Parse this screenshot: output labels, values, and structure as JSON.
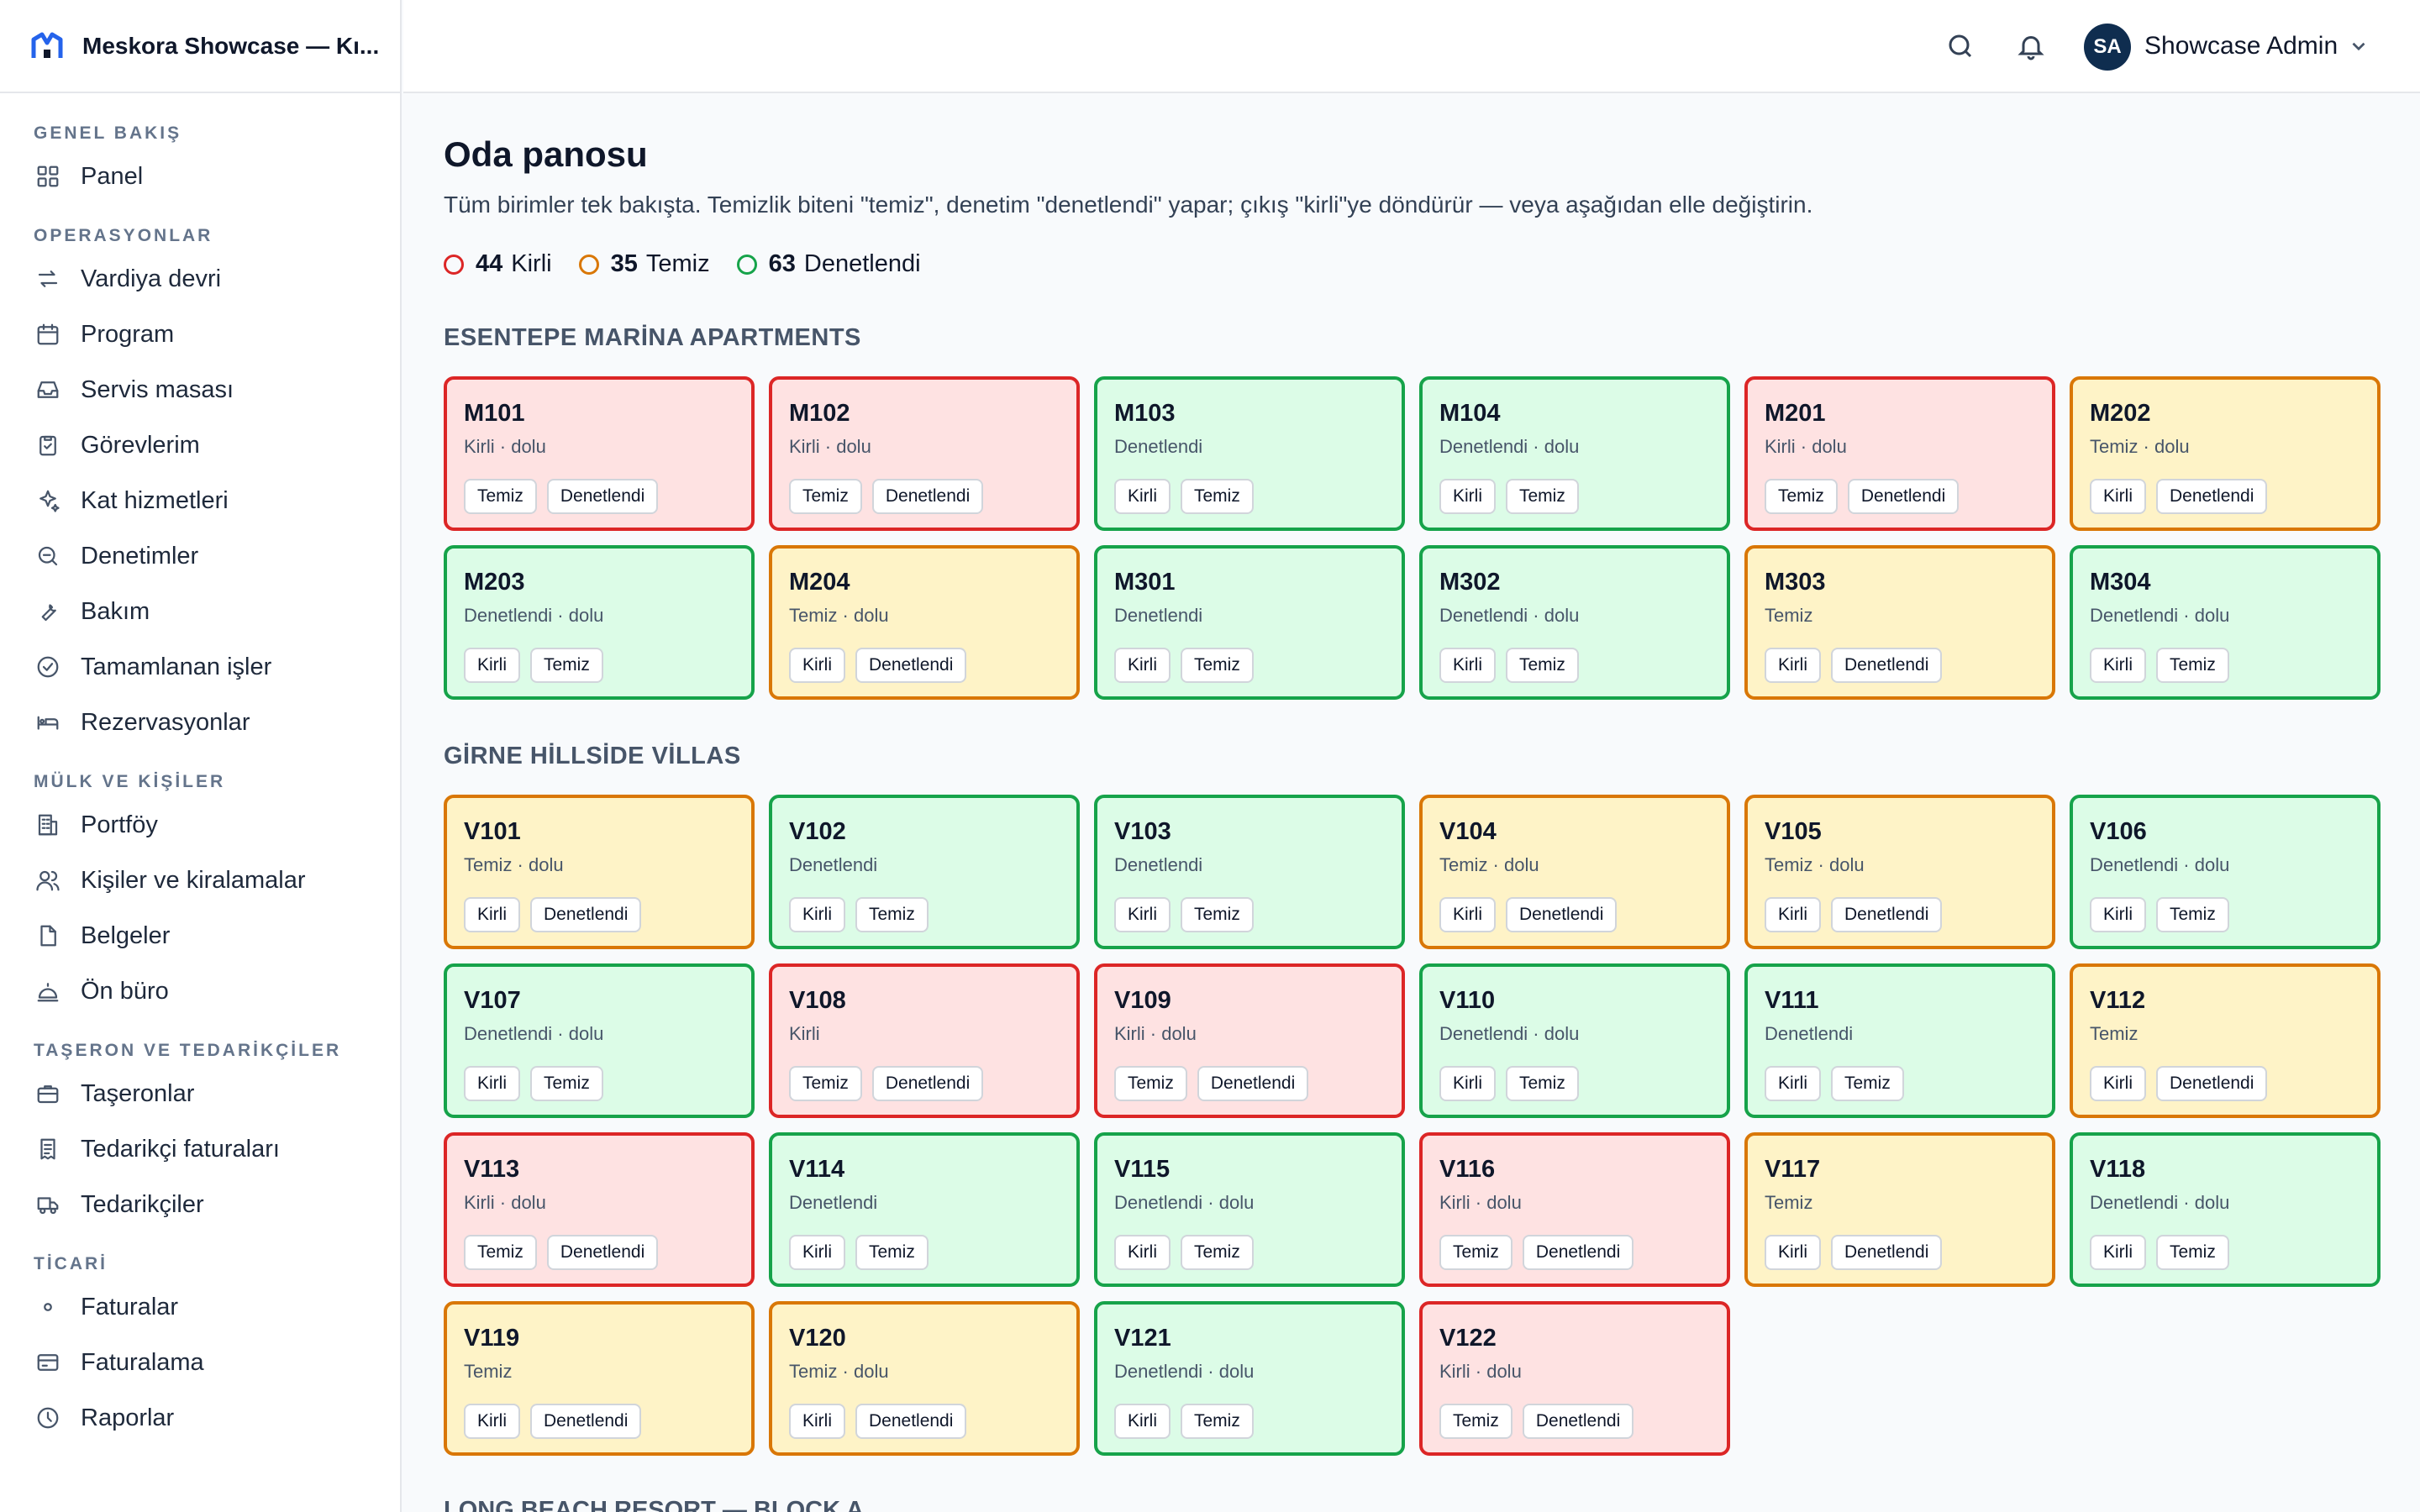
{
  "app": {
    "title": "Meskora Showcase — Kı..."
  },
  "colors": {
    "dirty": "#dc2626",
    "clean": "#d97706",
    "inspected": "#16a34a",
    "avatar": "#0f2d4f",
    "brand": "#2563eb"
  },
  "nav": {
    "sections": [
      {
        "label": "GENEL BAKIŞ",
        "items": [
          {
            "label": "Panel",
            "icon": "grid-icon"
          }
        ]
      },
      {
        "label": "OPERASYONLAR",
        "items": [
          {
            "label": "Vardiya devri",
            "icon": "swap-icon"
          },
          {
            "label": "Program",
            "icon": "calendar-icon"
          },
          {
            "label": "Servis masası",
            "icon": "inbox-icon"
          },
          {
            "label": "Görevlerim",
            "icon": "clipboard-check-icon"
          },
          {
            "label": "Kat hizmetleri",
            "icon": "sparkles-icon"
          },
          {
            "label": "Denetimler",
            "icon": "search-zoom-icon"
          },
          {
            "label": "Bakım",
            "icon": "wrench-icon"
          },
          {
            "label": "Tamamlanan işler",
            "icon": "check-circle-icon"
          },
          {
            "label": "Rezervasyonlar",
            "icon": "bed-icon"
          }
        ]
      },
      {
        "label": "MÜLK VE KİŞİLER",
        "items": [
          {
            "label": "Portföy",
            "icon": "building-icon"
          },
          {
            "label": "Kişiler ve kiralamalar",
            "icon": "users-icon"
          },
          {
            "label": "Belgeler",
            "icon": "file-icon"
          },
          {
            "label": "Ön büro",
            "icon": "bell-desk-icon"
          }
        ]
      },
      {
        "label": "TAŞERON VE TEDARİKÇİLER",
        "items": [
          {
            "label": "Taşeronlar",
            "icon": "briefcase-icon"
          },
          {
            "label": "Tedarikçi faturaları",
            "icon": "receipt-icon"
          },
          {
            "label": "Tedarikçiler",
            "icon": "truck-icon"
          }
        ]
      },
      {
        "label": "TİCARİ",
        "items": [
          {
            "label": "Faturalar",
            "icon": "dot-icon"
          },
          {
            "label": "Faturalama",
            "icon": "card-icon"
          },
          {
            "label": "Raporlar",
            "icon": "clock-icon"
          }
        ]
      }
    ]
  },
  "topbar": {
    "avatar_initials": "SA",
    "user_name": "Showcase Admin"
  },
  "page": {
    "title": "Oda panosu",
    "description": "Tüm birimler tek bakışta. Temizlik biteni \"temiz\", denetim \"denetlendi\" yapar; çıkış \"kirli\"ye döndürür — veya aşağıdan elle değiştirin.",
    "summary": [
      {
        "count": "44",
        "label": "Kirli",
        "state": "dirty"
      },
      {
        "count": "35",
        "label": "Temiz",
        "state": "clean"
      },
      {
        "count": "63",
        "label": "Denetlendi",
        "state": "inspected"
      }
    ]
  },
  "properties": [
    {
      "name": "ESENTEPE MARİNA APARTMENTS",
      "rooms": [
        {
          "id": "M101",
          "status": "Kirli · dolu",
          "state": "dirty",
          "actions": [
            "Temiz",
            "Denetlendi"
          ]
        },
        {
          "id": "M102",
          "status": "Kirli · dolu",
          "state": "dirty",
          "actions": [
            "Temiz",
            "Denetlendi"
          ]
        },
        {
          "id": "M103",
          "status": "Denetlendi",
          "state": "inspected",
          "actions": [
            "Kirli",
            "Temiz"
          ]
        },
        {
          "id": "M104",
          "status": "Denetlendi · dolu",
          "state": "inspected",
          "actions": [
            "Kirli",
            "Temiz"
          ]
        },
        {
          "id": "M201",
          "status": "Kirli · dolu",
          "state": "dirty",
          "actions": [
            "Temiz",
            "Denetlendi"
          ]
        },
        {
          "id": "M202",
          "status": "Temiz · dolu",
          "state": "clean",
          "actions": [
            "Kirli",
            "Denetlendi"
          ]
        },
        {
          "id": "M203",
          "status": "Denetlendi · dolu",
          "state": "inspected",
          "actions": [
            "Kirli",
            "Temiz"
          ]
        },
        {
          "id": "M204",
          "status": "Temiz · dolu",
          "state": "clean",
          "actions": [
            "Kirli",
            "Denetlendi"
          ]
        },
        {
          "id": "M301",
          "status": "Denetlendi",
          "state": "inspected",
          "actions": [
            "Kirli",
            "Temiz"
          ]
        },
        {
          "id": "M302",
          "status": "Denetlendi · dolu",
          "state": "inspected",
          "actions": [
            "Kirli",
            "Temiz"
          ]
        },
        {
          "id": "M303",
          "status": "Temiz",
          "state": "clean",
          "actions": [
            "Kirli",
            "Denetlendi"
          ]
        },
        {
          "id": "M304",
          "status": "Denetlendi · dolu",
          "state": "inspected",
          "actions": [
            "Kirli",
            "Temiz"
          ]
        }
      ]
    },
    {
      "name": "GİRNE HİLLSİDE VİLLAS",
      "rooms": [
        {
          "id": "V101",
          "status": "Temiz · dolu",
          "state": "clean",
          "actions": [
            "Kirli",
            "Denetlendi"
          ]
        },
        {
          "id": "V102",
          "status": "Denetlendi",
          "state": "inspected",
          "actions": [
            "Kirli",
            "Temiz"
          ]
        },
        {
          "id": "V103",
          "status": "Denetlendi",
          "state": "inspected",
          "actions": [
            "Kirli",
            "Temiz"
          ]
        },
        {
          "id": "V104",
          "status": "Temiz · dolu",
          "state": "clean",
          "actions": [
            "Kirli",
            "Denetlendi"
          ]
        },
        {
          "id": "V105",
          "status": "Temiz · dolu",
          "state": "clean",
          "actions": [
            "Kirli",
            "Denetlendi"
          ]
        },
        {
          "id": "V106",
          "status": "Denetlendi · dolu",
          "state": "inspected",
          "actions": [
            "Kirli",
            "Temiz"
          ]
        },
        {
          "id": "V107",
          "status": "Denetlendi · dolu",
          "state": "inspected",
          "actions": [
            "Kirli",
            "Temiz"
          ]
        },
        {
          "id": "V108",
          "status": "Kirli",
          "state": "dirty",
          "actions": [
            "Temiz",
            "Denetlendi"
          ]
        },
        {
          "id": "V109",
          "status": "Kirli · dolu",
          "state": "dirty",
          "actions": [
            "Temiz",
            "Denetlendi"
          ]
        },
        {
          "id": "V110",
          "status": "Denetlendi · dolu",
          "state": "inspected",
          "actions": [
            "Kirli",
            "Temiz"
          ]
        },
        {
          "id": "V111",
          "status": "Denetlendi",
          "state": "inspected",
          "actions": [
            "Kirli",
            "Temiz"
          ]
        },
        {
          "id": "V112",
          "status": "Temiz",
          "state": "clean",
          "actions": [
            "Kirli",
            "Denetlendi"
          ]
        },
        {
          "id": "V113",
          "status": "Kirli · dolu",
          "state": "dirty",
          "actions": [
            "Temiz",
            "Denetlendi"
          ]
        },
        {
          "id": "V114",
          "status": "Denetlendi",
          "state": "inspected",
          "actions": [
            "Kirli",
            "Temiz"
          ]
        },
        {
          "id": "V115",
          "status": "Denetlendi · dolu",
          "state": "inspected",
          "actions": [
            "Kirli",
            "Temiz"
          ]
        },
        {
          "id": "V116",
          "status": "Kirli · dolu",
          "state": "dirty",
          "actions": [
            "Temiz",
            "Denetlendi"
          ]
        },
        {
          "id": "V117",
          "status": "Temiz",
          "state": "clean",
          "actions": [
            "Kirli",
            "Denetlendi"
          ]
        },
        {
          "id": "V118",
          "status": "Denetlendi · dolu",
          "state": "inspected",
          "actions": [
            "Kirli",
            "Temiz"
          ]
        },
        {
          "id": "V119",
          "status": "Temiz",
          "state": "clean",
          "actions": [
            "Kirli",
            "Denetlendi"
          ]
        },
        {
          "id": "V120",
          "status": "Temiz · dolu",
          "state": "clean",
          "actions": [
            "Kirli",
            "Denetlendi"
          ]
        },
        {
          "id": "V121",
          "status": "Denetlendi · dolu",
          "state": "inspected",
          "actions": [
            "Kirli",
            "Temiz"
          ]
        },
        {
          "id": "V122",
          "status": "Kirli · dolu",
          "state": "dirty",
          "actions": [
            "Temiz",
            "Denetlendi"
          ]
        }
      ]
    }
  ],
  "next_section": {
    "name": "LONG BEACH RESORT — BLOCK A"
  }
}
